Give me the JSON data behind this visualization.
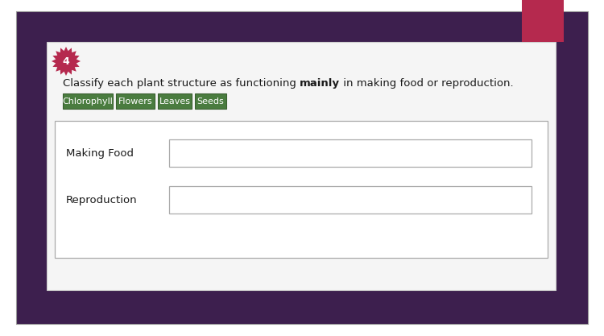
{
  "bg_outer": "#ffffff",
  "bg_slide": "#3d1f4e",
  "bg_content": "#f7f7f7",
  "number_bg": "#b5294e",
  "number_text": "4",
  "number_fontsize": 9,
  "instruction_part1": "Classify each plant structure as functioning ",
  "instruction_bold": "mainly",
  "instruction_part2": " in making food or reproduction.",
  "instruction_fontsize": 9.5,
  "tags": [
    "Chlorophyll",
    "Flowers",
    "Leaves",
    "Seeds"
  ],
  "tag_bg": "#4a7c3f",
  "tag_border": "#3a6030",
  "tag_text_color": "#ffffff",
  "tag_fontsize": 8,
  "row_labels": [
    "Making Food",
    "Reproduction"
  ],
  "row_label_fontsize": 9.5,
  "box_border_color": "#bbbbbb",
  "box_fill": "#ffffff",
  "accent_bar_color": "#b5294e",
  "slide_border_color": "#888888",
  "content_bg": "#f5f5f5",
  "content_border": "#cccccc"
}
